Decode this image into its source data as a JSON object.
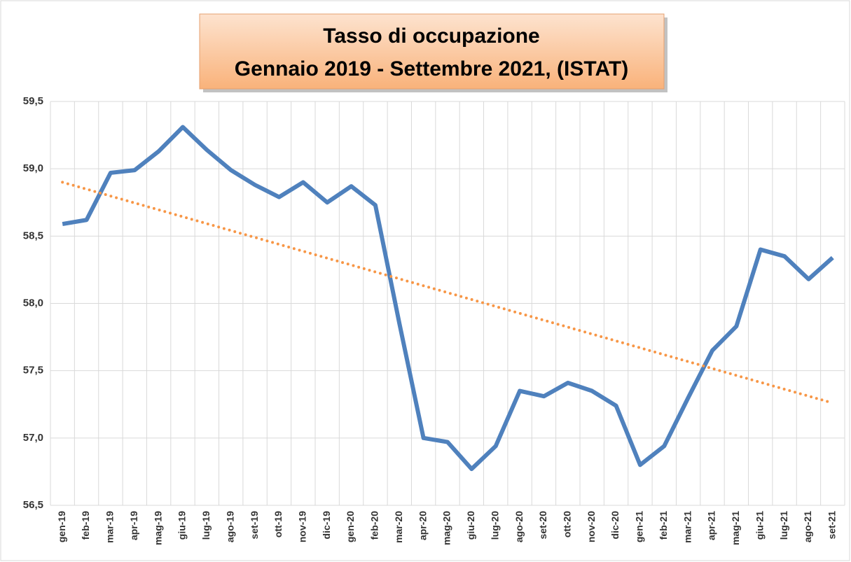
{
  "chart_data": {
    "type": "line",
    "title": [
      "Tasso di occupazione",
      "Gennaio 2019 - Settembre 2021, (ISTAT)"
    ],
    "categories": [
      "gen-19",
      "feb-19",
      "mar-19",
      "apr-19",
      "mag-19",
      "giu-19",
      "lug-19",
      "ago-19",
      "set-19",
      "ott-19",
      "nov-19",
      "dic-19",
      "gen-20",
      "feb-20",
      "mar-20",
      "apr-20",
      "mag-20",
      "giu-20",
      "lug-20",
      "ago-20",
      "set-20",
      "ott-20",
      "nov-20",
      "dic-20",
      "gen-21",
      "feb-21",
      "mar-21",
      "apr-21",
      "mag-21",
      "giu-21",
      "lug-21",
      "ago-21",
      "set-21"
    ],
    "series": [
      {
        "color": "#4f81bd",
        "values": [
          58.59,
          58.62,
          58.97,
          58.99,
          59.13,
          59.31,
          59.14,
          58.99,
          58.88,
          58.79,
          58.9,
          58.75,
          58.87,
          58.73,
          57.85,
          57.0,
          56.97,
          56.77,
          56.94,
          57.35,
          57.31,
          57.41,
          57.35,
          57.24,
          56.8,
          56.94,
          57.3,
          57.65,
          57.83,
          58.4,
          58.35,
          58.18,
          58.34
        ]
      }
    ],
    "trendline": {
      "color": "#f79646",
      "values": [
        58.9,
        57.26
      ]
    },
    "ylim": [
      56.5,
      59.5
    ],
    "yticks": [
      {
        "value": 56.5,
        "label": "56,5"
      },
      {
        "value": 57,
        "label": "57,0"
      },
      {
        "value": 57.5,
        "label": "57,5"
      },
      {
        "value": 58,
        "label": "58,0"
      },
      {
        "value": 58.5,
        "label": "58,5"
      },
      {
        "value": 59,
        "label": "59,0"
      },
      {
        "value": 59.5,
        "label": "59,5"
      }
    ],
    "grid": true
  }
}
